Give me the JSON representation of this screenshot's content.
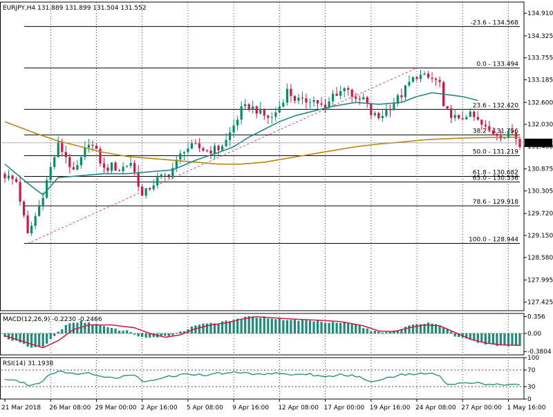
{
  "chart_data": [
    {
      "type": "candlestick",
      "title": "EURJPY,H4  131.889 131.899 131.504 131.552",
      "symbol": "EURJPY",
      "timeframe": "H4",
      "ohlc_header": {
        "open": 131.889,
        "high": 131.899,
        "low": 131.504,
        "close": 131.552
      },
      "last_price": "131.552",
      "ylim": [
        127.2,
        135.2
      ],
      "y_ticks": [
        "134.910",
        "134.325",
        "133.755",
        "133.185",
        "132.600",
        "132.030",
        "131.460",
        "130.875",
        "130.305",
        "129.720",
        "129.150",
        "128.580",
        "127.995",
        "127.425"
      ],
      "y_tick_values": [
        134.91,
        134.325,
        133.755,
        133.185,
        132.6,
        132.03,
        131.46,
        130.875,
        130.305,
        129.72,
        129.15,
        128.58,
        127.995,
        127.425
      ],
      "x_ticks": [
        "21 Mar 2018",
        "26 Mar 08:00",
        "29 Mar 00:00",
        "2 Apr 16:00",
        "5 Apr 08:00",
        "9 Apr 16:00",
        "12 Apr 08:00",
        "17 Apr 00:00",
        "19 Apr 16:00",
        "24 Apr 08:00",
        "27 Apr 00:00",
        "1 May 16:00"
      ],
      "x_tick_index": [
        0,
        12,
        24,
        36,
        48,
        60,
        72,
        84,
        96,
        108,
        120,
        132
      ],
      "bar_count": 136,
      "fib_levels": [
        {
          "ratio": -23.6,
          "value": 134.568,
          "label": "-23.6 - 134.568"
        },
        {
          "ratio": 0.0,
          "value": 133.494,
          "label": "0.0 - 133.494"
        },
        {
          "ratio": 23.6,
          "value": 132.42,
          "label": "23.6 - 132.420"
        },
        {
          "ratio": 38.2,
          "value": 131.756,
          "label": "38.2 - 131.756"
        },
        {
          "ratio": 50.0,
          "value": 131.219,
          "label": "50.0 - 131.219"
        },
        {
          "ratio": 61.8,
          "value": 130.682,
          "label": "61.8 - 130.682"
        },
        {
          "ratio": 65.0,
          "value": 130.536,
          "label": "65.0 - 130.536"
        },
        {
          "ratio": 78.6,
          "value": 129.918,
          "label": "78.6 - 129.918"
        },
        {
          "ratio": 100.0,
          "value": 128.944,
          "label": "100.0 - 128.944"
        }
      ],
      "fib_anchor": {
        "from_index": 6,
        "from_value": 128.944,
        "to_index": 108,
        "to_value": 133.494
      },
      "close_path": [
        [
          0,
          130.7
        ],
        [
          3,
          130.55
        ],
        [
          5,
          129.6
        ],
        [
          6,
          129.15
        ],
        [
          9,
          129.9
        ],
        [
          12,
          130.9
        ],
        [
          14,
          131.5
        ],
        [
          16,
          131.2
        ],
        [
          18,
          130.75
        ],
        [
          20,
          131.1
        ],
        [
          22,
          131.6
        ],
        [
          24,
          131.3
        ],
        [
          26,
          130.85
        ],
        [
          28,
          130.95
        ],
        [
          30,
          130.85
        ],
        [
          33,
          131.05
        ],
        [
          35,
          130.5
        ],
        [
          36,
          130.15
        ],
        [
          38,
          130.4
        ],
        [
          40,
          130.6
        ],
        [
          43,
          130.75
        ],
        [
          45,
          131.05
        ],
        [
          47,
          131.4
        ],
        [
          50,
          131.45
        ],
        [
          53,
          131.35
        ],
        [
          56,
          131.4
        ],
        [
          58,
          131.6
        ],
        [
          60,
          132.0
        ],
        [
          62,
          132.4
        ],
        [
          64,
          132.5
        ],
        [
          66,
          132.4
        ],
        [
          68,
          132.25
        ],
        [
          70,
          132.2
        ],
        [
          72,
          132.5
        ],
        [
          74,
          132.9
        ],
        [
          76,
          132.7
        ],
        [
          78,
          132.6
        ],
        [
          80,
          132.7
        ],
        [
          82,
          132.6
        ],
        [
          84,
          132.4
        ],
        [
          86,
          132.8
        ],
        [
          88,
          132.9
        ],
        [
          90,
          133.0
        ],
        [
          92,
          132.6
        ],
        [
          94,
          132.7
        ],
        [
          96,
          132.3
        ],
        [
          98,
          132.2
        ],
        [
          100,
          132.4
        ],
        [
          102,
          132.6
        ],
        [
          104,
          132.8
        ],
        [
          106,
          133.1
        ],
        [
          108,
          133.3
        ],
        [
          110,
          133.25
        ],
        [
          112,
          133.2
        ],
        [
          114,
          133.1
        ],
        [
          115,
          132.4
        ],
        [
          117,
          132.3
        ],
        [
          119,
          132.1
        ],
        [
          121,
          132.3
        ],
        [
          123,
          132.2
        ],
        [
          125,
          132.0
        ],
        [
          127,
          131.85
        ],
        [
          129,
          131.8
        ],
        [
          131,
          131.7
        ],
        [
          133,
          131.85
        ],
        [
          135,
          131.55
        ]
      ],
      "ma_fast_path": [
        [
          0,
          131.0
        ],
        [
          6,
          130.5
        ],
        [
          10,
          130.2
        ],
        [
          14,
          130.65
        ],
        [
          20,
          130.7
        ],
        [
          26,
          130.75
        ],
        [
          32,
          130.75
        ],
        [
          38,
          130.8
        ],
        [
          44,
          130.85
        ],
        [
          50,
          131.1
        ],
        [
          56,
          131.3
        ],
        [
          60,
          131.45
        ],
        [
          64,
          131.7
        ],
        [
          68,
          131.9
        ],
        [
          72,
          132.1
        ],
        [
          76,
          132.25
        ],
        [
          80,
          132.35
        ],
        [
          86,
          132.5
        ],
        [
          92,
          132.6
        ],
        [
          98,
          132.55
        ],
        [
          104,
          132.6
        ],
        [
          108,
          132.75
        ],
        [
          112,
          132.85
        ],
        [
          116,
          132.8
        ],
        [
          120,
          132.75
        ],
        [
          124,
          132.65
        ]
      ],
      "ma_slow_path": [
        [
          0,
          132.1
        ],
        [
          8,
          131.8
        ],
        [
          14,
          131.6
        ],
        [
          20,
          131.45
        ],
        [
          26,
          131.3
        ],
        [
          32,
          131.2
        ],
        [
          38,
          131.15
        ],
        [
          44,
          131.1
        ],
        [
          50,
          131.05
        ],
        [
          56,
          131.0
        ],
        [
          62,
          131.0
        ],
        [
          68,
          131.05
        ],
        [
          74,
          131.15
        ],
        [
          80,
          131.25
        ],
        [
          86,
          131.35
        ],
        [
          92,
          131.45
        ],
        [
          98,
          131.52
        ],
        [
          104,
          131.57
        ],
        [
          110,
          131.63
        ],
        [
          116,
          131.66
        ],
        [
          122,
          131.68
        ],
        [
          128,
          131.69
        ],
        [
          135,
          131.7
        ]
      ],
      "colors": {
        "bull": "#008f6b",
        "bear": "#d4143c",
        "ma_fast": "#1d8a86",
        "ma_slow": "#b8860b",
        "fib": "#000000",
        "trend": "#d4143c",
        "price_label_bg": "#000000",
        "price_label_fg": "#ffffff",
        "separator": "#000000"
      }
    },
    {
      "type": "macd",
      "title": "MACD(12,26,9) -0.2230 -0.2466",
      "y_ticks": [
        "0.356",
        "0.00",
        "-0.3804"
      ],
      "y_tick_values": [
        0.356,
        0.0,
        -0.3804
      ],
      "ylim": [
        -0.45,
        0.42
      ],
      "hist_path": [
        [
          0,
          -0.08
        ],
        [
          4,
          -0.2
        ],
        [
          7,
          -0.3
        ],
        [
          10,
          -0.28
        ],
        [
          13,
          -0.05
        ],
        [
          16,
          0.18
        ],
        [
          20,
          0.25
        ],
        [
          24,
          0.2
        ],
        [
          28,
          0.1
        ],
        [
          32,
          0.05
        ],
        [
          36,
          -0.08
        ],
        [
          40,
          -0.1
        ],
        [
          44,
          -0.02
        ],
        [
          48,
          0.1
        ],
        [
          52,
          0.22
        ],
        [
          56,
          0.22
        ],
        [
          60,
          0.28
        ],
        [
          64,
          0.35
        ],
        [
          68,
          0.34
        ],
        [
          72,
          0.3
        ],
        [
          76,
          0.28
        ],
        [
          80,
          0.27
        ],
        [
          84,
          0.24
        ],
        [
          88,
          0.24
        ],
        [
          92,
          0.2
        ],
        [
          96,
          0.05
        ],
        [
          100,
          0.03
        ],
        [
          104,
          0.1
        ],
        [
          108,
          0.2
        ],
        [
          112,
          0.22
        ],
        [
          116,
          0.1
        ],
        [
          118,
          -0.05
        ],
        [
          122,
          -0.15
        ],
        [
          126,
          -0.22
        ],
        [
          130,
          -0.25
        ],
        [
          135,
          -0.26
        ]
      ],
      "signal_path": [
        [
          0,
          -0.05
        ],
        [
          6,
          -0.2
        ],
        [
          10,
          -0.3
        ],
        [
          14,
          -0.15
        ],
        [
          18,
          0.08
        ],
        [
          22,
          0.18
        ],
        [
          28,
          0.18
        ],
        [
          34,
          0.12
        ],
        [
          38,
          0.0
        ],
        [
          42,
          -0.08
        ],
        [
          46,
          -0.03
        ],
        [
          50,
          0.1
        ],
        [
          54,
          0.18
        ],
        [
          58,
          0.22
        ],
        [
          62,
          0.3
        ],
        [
          66,
          0.35
        ],
        [
          70,
          0.33
        ],
        [
          76,
          0.3
        ],
        [
          82,
          0.28
        ],
        [
          88,
          0.25
        ],
        [
          94,
          0.16
        ],
        [
          98,
          0.05
        ],
        [
          102,
          0.04
        ],
        [
          106,
          0.12
        ],
        [
          110,
          0.18
        ],
        [
          114,
          0.16
        ],
        [
          118,
          0.02
        ],
        [
          122,
          -0.12
        ],
        [
          126,
          -0.2
        ],
        [
          130,
          -0.24
        ],
        [
          135,
          -0.25
        ]
      ],
      "colors": {
        "hist": "#1e8a78",
        "signal": "#d4143c"
      }
    },
    {
      "type": "rsi",
      "title": "RSI(14) 31.1938",
      "y_ticks": [
        "100",
        "70",
        "30",
        "0"
      ],
      "y_tick_values": [
        100,
        70,
        30,
        0
      ],
      "levels": [
        70,
        30
      ],
      "ylim": [
        0,
        100
      ],
      "line_path": [
        [
          0,
          48
        ],
        [
          3,
          45
        ],
        [
          6,
          35
        ],
        [
          9,
          38
        ],
        [
          12,
          62
        ],
        [
          15,
          68
        ],
        [
          18,
          60
        ],
        [
          22,
          62
        ],
        [
          26,
          55
        ],
        [
          30,
          52
        ],
        [
          34,
          58
        ],
        [
          36,
          42
        ],
        [
          40,
          50
        ],
        [
          44,
          56
        ],
        [
          48,
          60
        ],
        [
          52,
          58
        ],
        [
          56,
          62
        ],
        [
          60,
          64
        ],
        [
          64,
          62
        ],
        [
          68,
          60
        ],
        [
          72,
          63
        ],
        [
          76,
          58
        ],
        [
          80,
          60
        ],
        [
          84,
          52
        ],
        [
          88,
          60
        ],
        [
          92,
          55
        ],
        [
          96,
          42
        ],
        [
          100,
          52
        ],
        [
          104,
          58
        ],
        [
          108,
          62
        ],
        [
          112,
          60
        ],
        [
          114,
          58
        ],
        [
          116,
          35
        ],
        [
          120,
          40
        ],
        [
          124,
          38
        ],
        [
          128,
          35
        ],
        [
          131,
          32
        ],
        [
          133,
          38
        ],
        [
          135,
          31
        ]
      ],
      "colors": {
        "line": "#1e8a78",
        "levels": "#000000"
      }
    }
  ]
}
